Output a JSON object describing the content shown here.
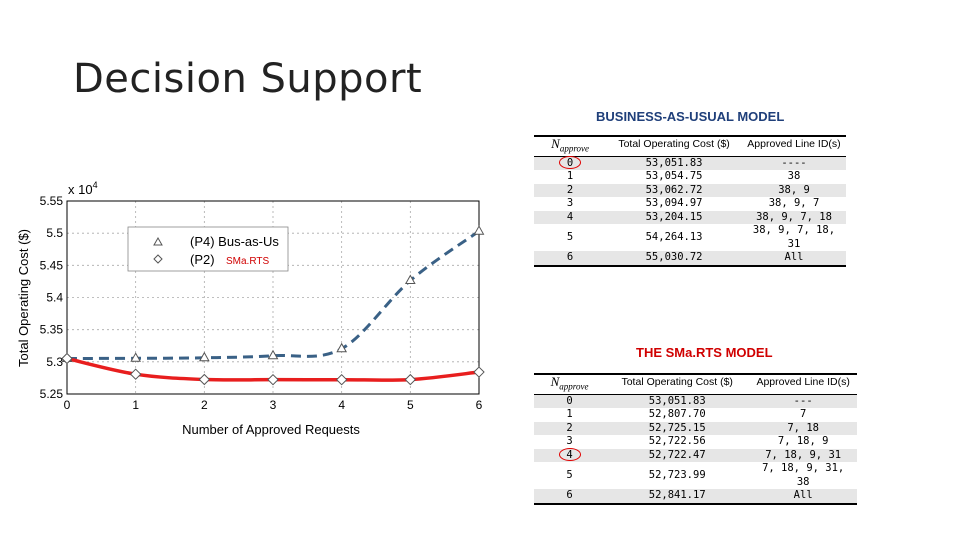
{
  "slide": {
    "title": "Decision Support"
  },
  "bau_table": {
    "title": "BUSINESS-AS-USUAL MODEL",
    "headers": {
      "n": "N",
      "n_sub": "approve",
      "cost": "Total Operating Cost ($)",
      "lines": "Approved Line ID(s)"
    },
    "rows": [
      {
        "n": "0",
        "cost": "53,051.83",
        "lines": "----"
      },
      {
        "n": "1",
        "cost": "53,054.75",
        "lines": "38"
      },
      {
        "n": "2",
        "cost": "53,062.72",
        "lines": "38, 9"
      },
      {
        "n": "3",
        "cost": "53,094.97",
        "lines": "38, 9, 7"
      },
      {
        "n": "4",
        "cost": "53,204.15",
        "lines": "38, 9, 7, 18"
      },
      {
        "n": "5",
        "cost": "54,264.13",
        "lines": "38, 9, 7, 18, 31"
      },
      {
        "n": "6",
        "cost": "55,030.72",
        "lines": "All"
      }
    ]
  },
  "smarts_table": {
    "title": "THE SMa.RTS MODEL",
    "headers": {
      "n": "N",
      "n_sub": "approve",
      "cost": "Total Operating Cost ($)",
      "lines": "Approved Line ID(s)"
    },
    "rows": [
      {
        "n": "0",
        "cost": "53,051.83",
        "lines": "---"
      },
      {
        "n": "1",
        "cost": "52,807.70",
        "lines": "7"
      },
      {
        "n": "2",
        "cost": "52,725.15",
        "lines": "7, 18"
      },
      {
        "n": "3",
        "cost": "52,722.56",
        "lines": "7, 18, 9"
      },
      {
        "n": "4",
        "cost": "52,722.47",
        "lines": "7, 18, 9, 31"
      },
      {
        "n": "5",
        "cost": "52,723.99",
        "lines": "7, 18, 9, 31, 38"
      },
      {
        "n": "6",
        "cost": "52,841.17",
        "lines": "All"
      }
    ]
  },
  "chart_data": {
    "type": "line",
    "xlabel": "Number of Approved Requests",
    "ylabel": "Total Operating Cost ($)",
    "multiplier": "x 10",
    "multiplier_exp": "4",
    "xlim": [
      0,
      6
    ],
    "ylim": [
      5.25,
      5.55
    ],
    "xticks": [
      "0",
      "1",
      "2",
      "3",
      "4",
      "5",
      "6"
    ],
    "yticks": [
      "5.25",
      "5.3",
      "5.35",
      "5.4",
      "5.45",
      "5.5",
      "5.55"
    ],
    "series": [
      {
        "name": "(P4) Bus-as-Us",
        "color": "#3a6186",
        "style": "dashed",
        "marker": "triangle",
        "x": [
          0,
          1,
          2,
          3,
          4,
          5,
          6
        ],
        "y": [
          5.305183,
          5.305475,
          5.306272,
          5.309497,
          5.320415,
          5.426413,
          5.503072
        ]
      },
      {
        "name": "(P2)",
        "name_suffix": "SMa.RTS",
        "color": "#e81e1e",
        "style": "solid",
        "marker": "diamond",
        "x": [
          0,
          1,
          2,
          3,
          4,
          5,
          6
        ],
        "y": [
          5.305183,
          5.28077,
          5.272515,
          5.272256,
          5.272247,
          5.272399,
          5.284117
        ]
      }
    ],
    "legend": "top-left",
    "grid": true
  }
}
